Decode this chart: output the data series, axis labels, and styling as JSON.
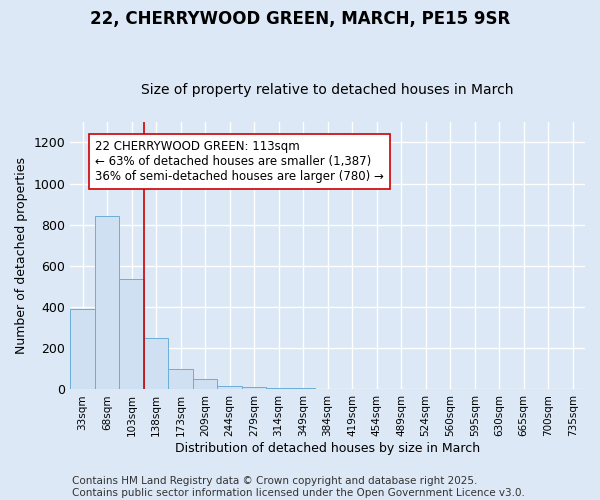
{
  "title": "22, CHERRYWOOD GREEN, MARCH, PE15 9SR",
  "subtitle": "Size of property relative to detached houses in March",
  "xlabel": "Distribution of detached houses by size in March",
  "ylabel": "Number of detached properties",
  "categories": [
    "33sqm",
    "68sqm",
    "103sqm",
    "138sqm",
    "173sqm",
    "209sqm",
    "244sqm",
    "279sqm",
    "314sqm",
    "349sqm",
    "384sqm",
    "419sqm",
    "454sqm",
    "489sqm",
    "524sqm",
    "560sqm",
    "595sqm",
    "630sqm",
    "665sqm",
    "700sqm",
    "735sqm"
  ],
  "values": [
    390,
    840,
    535,
    248,
    98,
    52,
    18,
    12,
    8,
    5,
    2,
    0,
    0,
    0,
    0,
    0,
    0,
    0,
    0,
    0,
    0
  ],
  "bar_color": "#cfe0f3",
  "bar_edge_color": "#6aaed6",
  "vline_x_index": 2,
  "vline_color": "#cc0000",
  "annotation_text": "22 CHERRYWOOD GREEN: 113sqm\n← 63% of detached houses are smaller (1,387)\n36% of semi-detached houses are larger (780) →",
  "annotation_box_color": "#ffffff",
  "annotation_box_edge": "#cc0000",
  "ylim": [
    0,
    1300
  ],
  "yticks": [
    0,
    200,
    400,
    600,
    800,
    1000,
    1200
  ],
  "background_color": "#dce8f5",
  "grid_color": "#ffffff",
  "footer": "Contains HM Land Registry data © Crown copyright and database right 2025.\nContains public sector information licensed under the Open Government Licence v3.0.",
  "title_fontsize": 12,
  "subtitle_fontsize": 10,
  "annot_fontsize": 8.5,
  "footer_fontsize": 7.5,
  "ylabel_fontsize": 9,
  "xlabel_fontsize": 9
}
